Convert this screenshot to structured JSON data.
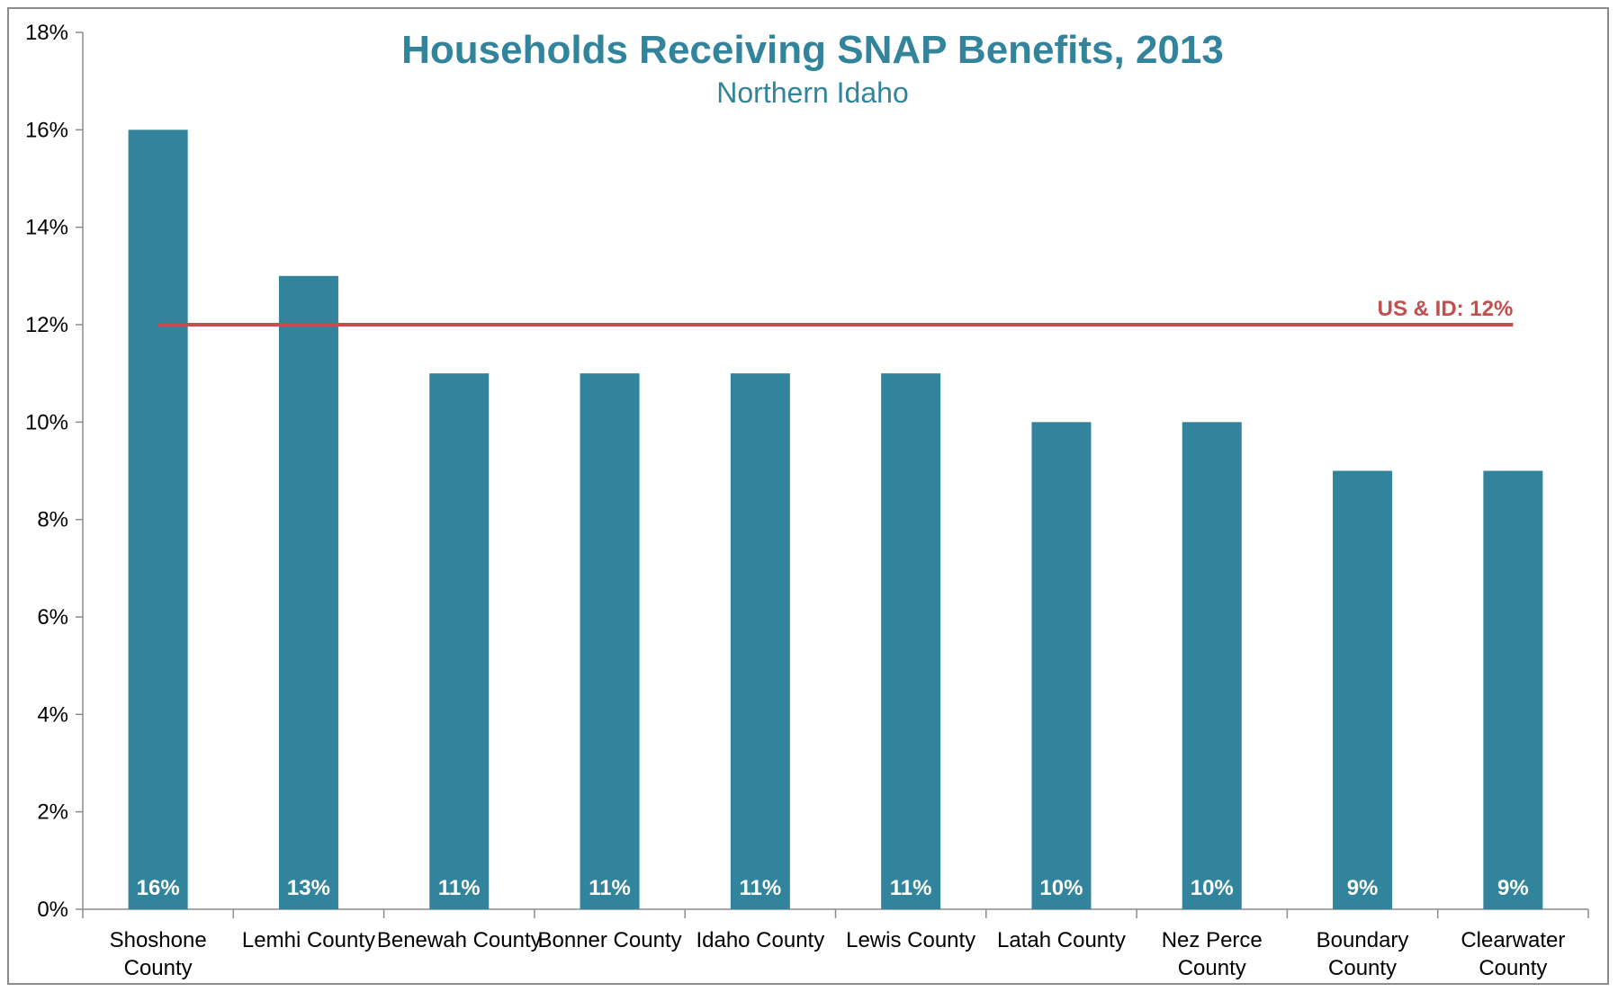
{
  "chart_data": {
    "type": "bar",
    "title": "Households Receiving SNAP Benefits, 2013",
    "subtitle": "Northern Idaho",
    "categories": [
      [
        "Shoshone",
        "County"
      ],
      [
        "Lemhi County"
      ],
      [
        "Benewah County"
      ],
      [
        "Bonner County"
      ],
      [
        "Idaho County"
      ],
      [
        "Lewis County"
      ],
      [
        "Latah County"
      ],
      [
        "Nez Perce",
        "County"
      ],
      [
        "Boundary",
        "County"
      ],
      [
        "Clearwater",
        "County"
      ]
    ],
    "values": [
      16,
      13,
      11,
      11,
      11,
      11,
      10,
      10,
      9,
      9
    ],
    "data_labels": [
      "16%",
      "13%",
      "11%",
      "11%",
      "11%",
      "11%",
      "10%",
      "10%",
      "9%",
      "9%"
    ],
    "ylim": [
      0,
      18
    ],
    "yticks": [
      "0%",
      "2%",
      "4%",
      "6%",
      "8%",
      "10%",
      "12%",
      "14%",
      "16%",
      "18%"
    ],
    "reference_line": {
      "value": 12,
      "label": "US & ID: 12%"
    },
    "grid": false,
    "legend": "none",
    "colors": {
      "bar": "#31849b",
      "title": "#31849b",
      "reference": "#c0504d"
    }
  }
}
